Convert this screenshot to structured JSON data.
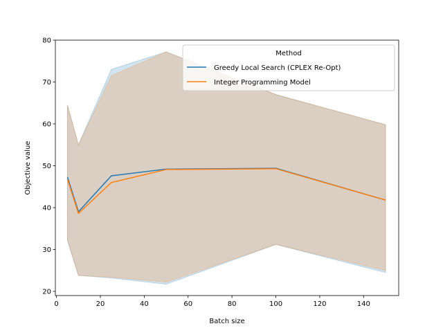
{
  "chart_data": {
    "type": "line",
    "xlabel": "Batch size",
    "ylabel": "Objective value",
    "xlim": [
      -0.5,
      156.0
    ],
    "ylim": [
      19.0,
      80.0
    ],
    "xticks": [
      0,
      20,
      40,
      60,
      80,
      100,
      120,
      140
    ],
    "yticks": [
      20,
      30,
      40,
      50,
      60,
      70,
      80
    ],
    "grid": false,
    "legend": {
      "title": "Method",
      "placement": "top-right"
    },
    "x": [
      5,
      10,
      25,
      50,
      100,
      150
    ],
    "series": [
      {
        "name": "Greedy Local Search (CPLEX Re-Opt)",
        "color": "#1f77b4",
        "values": [
          47.3,
          39.0,
          47.6,
          49.2,
          49.4,
          41.8
        ],
        "band_upper": [
          64.5,
          55.0,
          73.0,
          77.2,
          67.0,
          59.8
        ],
        "band_lower": [
          32.2,
          23.8,
          23.2,
          21.7,
          31.2,
          24.5
        ]
      },
      {
        "name": "Integer Programming Model",
        "color": "#ff7f0e",
        "values": [
          46.8,
          38.6,
          46.0,
          49.1,
          49.3,
          41.8
        ],
        "band_upper": [
          64.5,
          55.0,
          71.5,
          77.2,
          67.0,
          59.8
        ],
        "band_lower": [
          32.2,
          23.8,
          23.4,
          22.2,
          31.2,
          25.0
        ]
      }
    ]
  }
}
